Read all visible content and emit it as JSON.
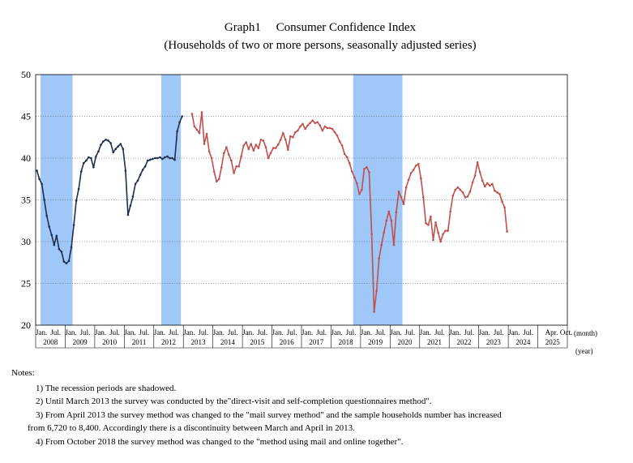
{
  "chart_data": {
    "type": "line",
    "title": "Graph1　 Consumer Confidence Index",
    "subtitle": "(Households of two or more persons, seasonally adjusted series)",
    "x_unit": "(month)",
    "x_unit2": "(year)",
    "ylim": [
      20,
      50
    ],
    "yticks": [
      20,
      25,
      30,
      35,
      40,
      45,
      50
    ],
    "grid": true,
    "month_tick_labels": [
      {
        "m": "2008-01",
        "label": "Jan."
      },
      {
        "m": "2008-07",
        "label": "Jul."
      },
      {
        "m": "2009-01",
        "label": "Jan."
      },
      {
        "m": "2009-07",
        "label": "Jul."
      },
      {
        "m": "2010-01",
        "label": "Jan."
      },
      {
        "m": "2010-07",
        "label": "Jul."
      },
      {
        "m": "2011-01",
        "label": "Jan."
      },
      {
        "m": "2011-07",
        "label": "Jul."
      },
      {
        "m": "2012-01",
        "label": "Jan."
      },
      {
        "m": "2012-07",
        "label": "Jul."
      },
      {
        "m": "2013-01",
        "label": "Jan."
      },
      {
        "m": "2013-07",
        "label": "Jul."
      },
      {
        "m": "2014-01",
        "label": "Jan."
      },
      {
        "m": "2014-07",
        "label": "Jul."
      },
      {
        "m": "2015-01",
        "label": "Jan."
      },
      {
        "m": "2015-07",
        "label": "Jul."
      },
      {
        "m": "2016-01",
        "label": "Jan."
      },
      {
        "m": "2016-07",
        "label": "Jul."
      },
      {
        "m": "2017-01",
        "label": "Jan."
      },
      {
        "m": "2017-07",
        "label": "Jul."
      },
      {
        "m": "2018-01",
        "label": "Jan."
      },
      {
        "m": "2018-07",
        "label": "Jul."
      },
      {
        "m": "2019-01",
        "label": "Jan."
      },
      {
        "m": "2019-07",
        "label": "Jul."
      },
      {
        "m": "2020-01",
        "label": "Jan."
      },
      {
        "m": "2020-07",
        "label": "Jul."
      },
      {
        "m": "2021-01",
        "label": "Jan."
      },
      {
        "m": "2021-07",
        "label": "Jul."
      },
      {
        "m": "2022-01",
        "label": "Jan."
      },
      {
        "m": "2022-07",
        "label": "Jul."
      },
      {
        "m": "2023-01",
        "label": "Jan."
      },
      {
        "m": "2023-07",
        "label": "Jul."
      },
      {
        "m": "2024-01",
        "label": "Jan."
      },
      {
        "m": "2024-07",
        "label": "Jul."
      },
      {
        "m": "2025-04",
        "label": "Apr."
      },
      {
        "m": "2025-10",
        "label": "Oct."
      }
    ],
    "year_labels": [
      {
        "m": "2008-07",
        "label": "2008"
      },
      {
        "m": "2009-07",
        "label": "2009"
      },
      {
        "m": "2010-07",
        "label": "2010"
      },
      {
        "m": "2011-07",
        "label": "2011"
      },
      {
        "m": "2012-07",
        "label": "2012"
      },
      {
        "m": "2013-07",
        "label": "2013"
      },
      {
        "m": "2014-07",
        "label": "2014"
      },
      {
        "m": "2015-07",
        "label": "2015"
      },
      {
        "m": "2016-07",
        "label": "2016"
      },
      {
        "m": "2017-07",
        "label": "2017"
      },
      {
        "m": "2018-07",
        "label": "2018"
      },
      {
        "m": "2019-07",
        "label": "2019"
      },
      {
        "m": "2020-07",
        "label": "2020"
      },
      {
        "m": "2021-07",
        "label": "2021"
      },
      {
        "m": "2022-07",
        "label": "2022"
      },
      {
        "m": "2023-07",
        "label": "2023"
      },
      {
        "m": "2024-07",
        "label": "2024"
      },
      {
        "m": "2025-07",
        "label": "2025"
      }
    ],
    "recessions": [
      {
        "start": "2008-03",
        "end": "2009-03"
      },
      {
        "start": "2012-04",
        "end": "2012-11"
      },
      {
        "start": "2018-10",
        "end": "2020-05"
      }
    ],
    "series": [
      {
        "color": "#1f2f4f",
        "start": "2008-01",
        "values": [
          38.5,
          37.5,
          36.9,
          35.0,
          33.1,
          31.8,
          30.8,
          29.6,
          30.7,
          29.1,
          28.8,
          27.6,
          27.4,
          27.7,
          29.3,
          32.0,
          34.9,
          36.3,
          38.4,
          39.4,
          39.7,
          40.1,
          40.0,
          38.9,
          40.2,
          40.8,
          41.6,
          42.0,
          42.2,
          42.1,
          41.8,
          40.7,
          41.1,
          41.4,
          41.7,
          41.1,
          38.5,
          33.2,
          34.3,
          35.4,
          36.9,
          37.3,
          38.0,
          38.6,
          39.0,
          39.7,
          39.8,
          39.9,
          40.0,
          40.0,
          40.1,
          39.9,
          40.1,
          40.2,
          40.0,
          40.0,
          39.8,
          43.2,
          44.3,
          45.0
        ]
      },
      {
        "color": "#c0504d",
        "start": "2013-04",
        "values": [
          45.3,
          43.8,
          43.4,
          43.0,
          45.5,
          41.7,
          42.9,
          40.8,
          40.0,
          38.4,
          37.2,
          37.5,
          38.9,
          40.6,
          41.3,
          40.4,
          39.7,
          38.2,
          39.0,
          39.0,
          40.2,
          41.5,
          41.9,
          41.1,
          41.7,
          40.9,
          41.6,
          41.2,
          42.2,
          42.1,
          41.3,
          40.0,
          40.6,
          41.2,
          41.2,
          41.6,
          42.2,
          43.0,
          42.2,
          41.0,
          42.6,
          42.5,
          43.1,
          43.3,
          43.8,
          44.1,
          43.5,
          43.9,
          44.2,
          44.5,
          44.2,
          44.3,
          43.9,
          43.3,
          43.8,
          43.6,
          43.6,
          43.5,
          43.1,
          42.7,
          42.0,
          41.5,
          40.5,
          40.1,
          39.4,
          38.4,
          37.7,
          37.0,
          35.7,
          36.2,
          38.7,
          38.9,
          38.3,
          30.9,
          21.6,
          24.1,
          28.0,
          29.6,
          31.1,
          32.5,
          33.6,
          32.5,
          29.6,
          33.5,
          36.0,
          35.3,
          34.5,
          36.5,
          37.4,
          38.2,
          38.6,
          39.1,
          39.3,
          37.6,
          35.3,
          32.2,
          32.0,
          33.0,
          30.2,
          32.3,
          31.1,
          30.0,
          30.9,
          31.3,
          31.3,
          33.6,
          35.5,
          36.2,
          36.5,
          36.2,
          35.9,
          35.3,
          35.4,
          36.0,
          37.1,
          37.9,
          39.5,
          38.3,
          37.3,
          36.6,
          37.0,
          36.7,
          36.9,
          36.1,
          35.9,
          35.7,
          34.8,
          34.1,
          31.2
        ]
      }
    ]
  },
  "notes": {
    "heading": "Notes:",
    "items": [
      "1) The recession periods are shadowed.",
      "2) Until March 2013 the survey was conducted by the\"direct-visit and self-completion questionnaires method\".",
      "3) From April 2013 the survey method was changed to the \"mail survey method\" and the sample households number has increased",
      "from 6,720 to 8,400. Accordingly there is a discontinuity between March and April in 2013.",
      "4) From October 2018 the survey method was changed to the \"method using mail and online together\"."
    ]
  }
}
